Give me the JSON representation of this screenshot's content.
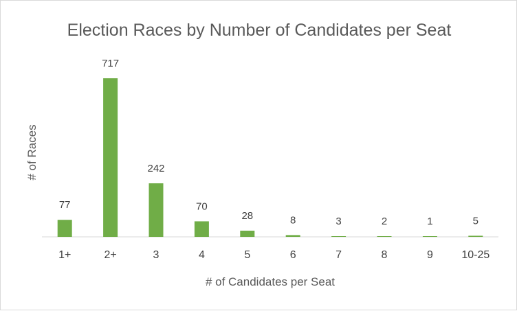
{
  "chart_data": {
    "type": "bar",
    "title": "Election Races by Number of Candidates per Seat",
    "xlabel": "# of Candidates per Seat",
    "ylabel": "# of Races",
    "categories": [
      "1+",
      "2+",
      "3",
      "4",
      "5",
      "6",
      "7",
      "8",
      "9",
      "10-25"
    ],
    "values": [
      77,
      717,
      242,
      70,
      28,
      8,
      3,
      2,
      1,
      5
    ],
    "ylim": [
      0,
      717
    ],
    "grid": false,
    "legend": "none",
    "bar_color": "#70ad47",
    "data_labels": true
  }
}
